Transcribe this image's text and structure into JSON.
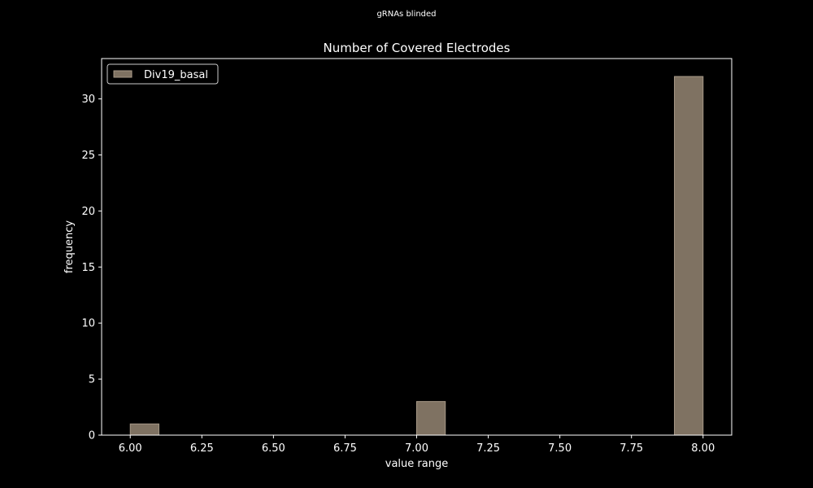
{
  "figure": {
    "suptitle": "gRNAs blinded",
    "background": "#000000",
    "foreground": "#ffffff"
  },
  "chart_data": {
    "type": "bar",
    "title": "Number of Covered Electrodes",
    "xlabel": "value range",
    "ylabel": "frequency",
    "xlim": [
      5.9,
      8.1
    ],
    "ylim": [
      0,
      33.6
    ],
    "x_ticks": [
      6.0,
      6.25,
      6.5,
      6.75,
      7.0,
      7.25,
      7.5,
      7.75,
      8.0
    ],
    "x_tick_labels": [
      "6.00",
      "6.25",
      "6.50",
      "6.75",
      "7.00",
      "7.25",
      "7.50",
      "7.75",
      "8.00"
    ],
    "y_ticks": [
      0,
      5,
      10,
      15,
      20,
      25,
      30
    ],
    "y_tick_labels": [
      "0",
      "5",
      "10",
      "15",
      "20",
      "25",
      "30"
    ],
    "grid": false,
    "legend_position": "top-left",
    "series": [
      {
        "name": "Div19_basal",
        "color": "#7f7262",
        "edgecolor": "#a89a88",
        "bins": [
          {
            "start": 6.0,
            "end": 6.1,
            "count": 1
          },
          {
            "start": 7.0,
            "end": 7.1,
            "count": 3
          },
          {
            "start": 7.9,
            "end": 8.0,
            "count": 32
          }
        ]
      }
    ]
  }
}
